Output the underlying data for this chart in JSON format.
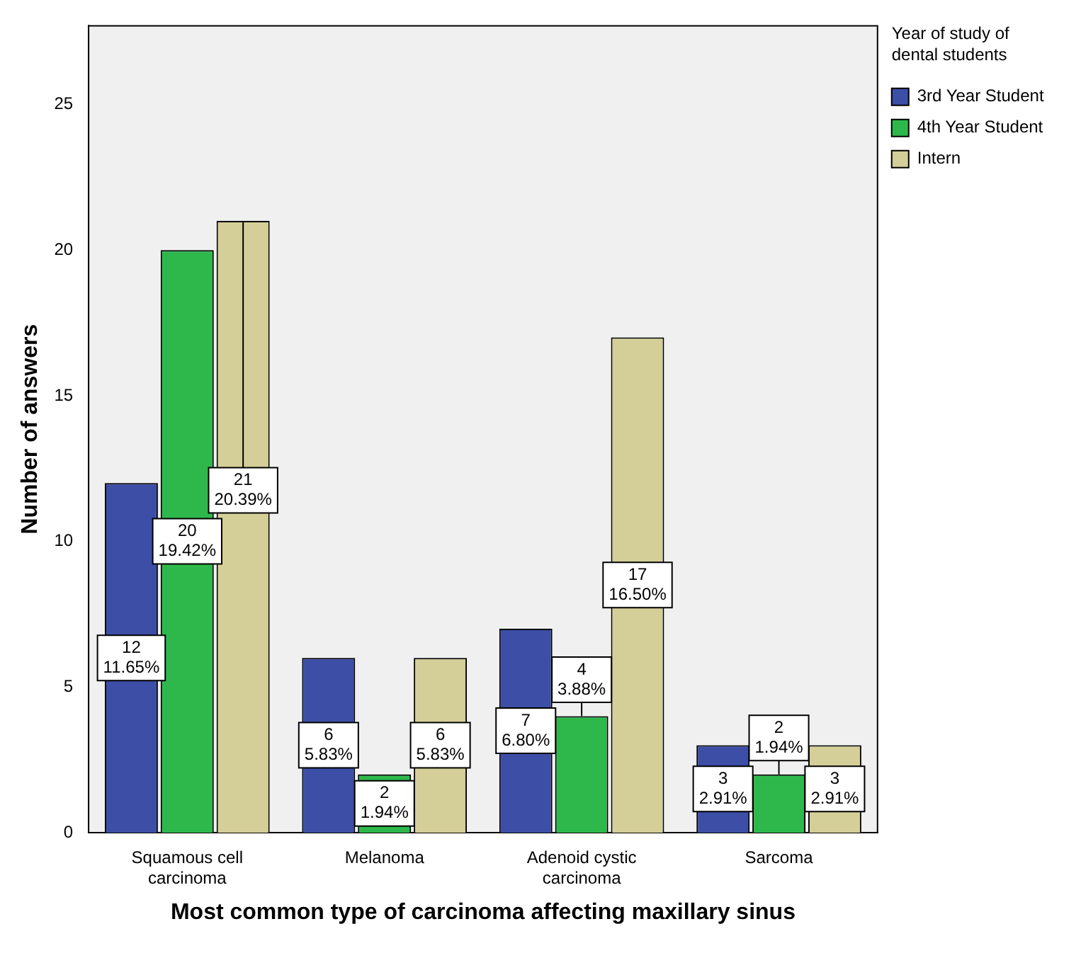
{
  "chart_data": {
    "type": "bar",
    "xlabel": "Most common type of carcinoma affecting maxillary sinus",
    "ylabel": "Number of answers",
    "legend_title": "Year of study of dental students",
    "categories": [
      "Squamous cell carcinoma",
      "Melanoma",
      "Adenoid cystic carcinoma",
      "Sarcoma"
    ],
    "series": [
      {
        "name": "3rd Year Student",
        "color": "#3c4ea6",
        "values": [
          12,
          6,
          7,
          3
        ],
        "value_labels": [
          "12\n11.65%",
          "6\n5.83%",
          "7\n6.80%",
          "3\n2.91%"
        ]
      },
      {
        "name": "4th Year Student",
        "color": "#2eb84b",
        "values": [
          20,
          2,
          4,
          2
        ],
        "value_labels": [
          "20\n19.42%",
          "2\n1.94%",
          "4\n3.88%",
          "2\n1.94%"
        ]
      },
      {
        "name": "Intern",
        "color": "#d4cf98",
        "values": [
          21,
          6,
          17,
          3
        ],
        "value_labels": [
          "21\n20.39%",
          "6\n5.83%",
          "17\n16.50%",
          "3\n2.91%"
        ]
      }
    ],
    "ylim": [
      0,
      27.7
    ],
    "yticks": [
      0,
      5,
      10,
      15,
      20,
      25
    ],
    "grid": false,
    "legend": "top right"
  }
}
